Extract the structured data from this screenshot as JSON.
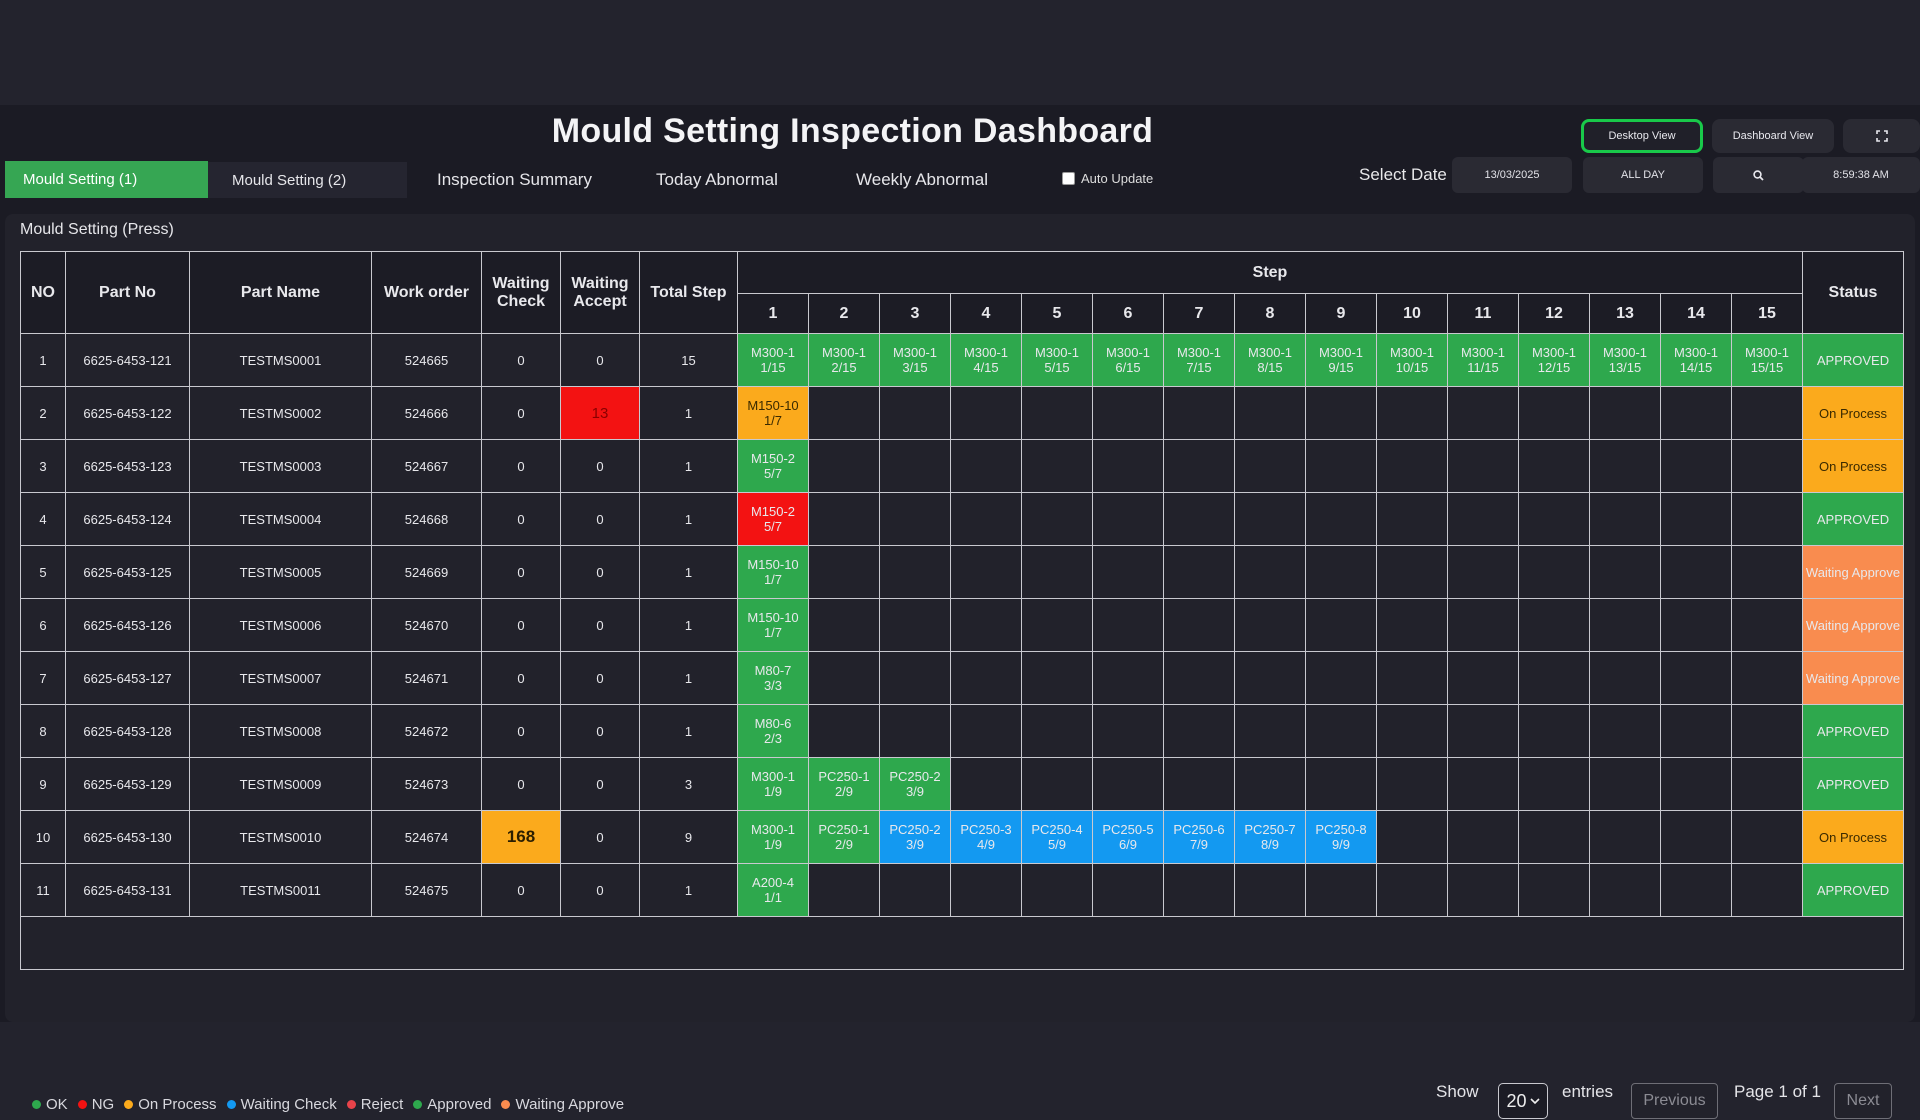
{
  "title": "Mould Setting Inspection Dashboard",
  "view_buttons": {
    "desktop": "Desktop View",
    "dashboard": "Dashboard View"
  },
  "tabs": [
    "Mould  Setting (1)",
    "Mould  Setting (2)",
    "Inspection Summary",
    "Today Abnormal",
    "Weekly Abnormal"
  ],
  "auto_update_label": "Auto Update",
  "select_date_label": "Select Date",
  "date_value": "13/03/2025",
  "range_value": "ALL DAY",
  "time_value": "8:59:38 AM",
  "panel_title": "Mould Setting (Press)",
  "table": {
    "headers": {
      "no": "NO",
      "part_no": "Part No",
      "part_name": "Part Name",
      "work_order": "Work order",
      "waiting_check": "Waiting Check",
      "waiting_accept": "Waiting Accept",
      "total_step": "Total Step",
      "step": "Step",
      "status": "Status"
    },
    "step_numbers": [
      "1",
      "2",
      "3",
      "4",
      "5",
      "6",
      "7",
      "8",
      "9",
      "10",
      "11",
      "12",
      "13",
      "14",
      "15"
    ],
    "rows": [
      {
        "no": "1",
        "part_no": "6625-6453-121",
        "part_name": "TESTMS0001",
        "work_order": "524665",
        "waiting_check": "0",
        "waiting_accept": "0",
        "total_step": "15",
        "status": "APPROVED",
        "status_class": "appr",
        "steps": [
          [
            "M300-1",
            "1/15",
            "ok"
          ],
          [
            "M300-1",
            "2/15",
            "ok"
          ],
          [
            "M300-1",
            "3/15",
            "ok"
          ],
          [
            "M300-1",
            "4/15",
            "ok"
          ],
          [
            "M300-1",
            "5/15",
            "ok"
          ],
          [
            "M300-1",
            "6/15",
            "ok"
          ],
          [
            "M300-1",
            "7/15",
            "ok"
          ],
          [
            "M300-1",
            "8/15",
            "ok"
          ],
          [
            "M300-1",
            "9/15",
            "ok"
          ],
          [
            "M300-1",
            "10/15",
            "ok"
          ],
          [
            "M300-1",
            "11/15",
            "ok"
          ],
          [
            "M300-1",
            "12/15",
            "ok"
          ],
          [
            "M300-1",
            "13/15",
            "ok"
          ],
          [
            "M300-1",
            "14/15",
            "ok"
          ],
          [
            "M300-1",
            "15/15",
            "ok"
          ]
        ]
      },
      {
        "no": "2",
        "part_no": "6625-6453-122",
        "part_name": "TESTMS0002",
        "work_order": "524666",
        "waiting_check": "0",
        "waiting_accept": "13",
        "accept_hl": "red",
        "total_step": "1",
        "status": "On Process",
        "status_class": "onp",
        "steps": [
          [
            "M150-10",
            "1/7",
            "onp"
          ]
        ]
      },
      {
        "no": "3",
        "part_no": "6625-6453-123",
        "part_name": "TESTMS0003",
        "work_order": "524667",
        "waiting_check": "0",
        "waiting_accept": "0",
        "total_step": "1",
        "status": "On Process",
        "status_class": "onp",
        "steps": [
          [
            "M150-2",
            "5/7",
            "ok"
          ]
        ]
      },
      {
        "no": "4",
        "part_no": "6625-6453-124",
        "part_name": "TESTMS0004",
        "work_order": "524668",
        "waiting_check": "0",
        "waiting_accept": "0",
        "total_step": "1",
        "status": "APPROVED",
        "status_class": "appr",
        "steps": [
          [
            "M150-2",
            "5/7",
            "ng"
          ]
        ]
      },
      {
        "no": "5",
        "part_no": "6625-6453-125",
        "part_name": "TESTMS0005",
        "work_order": "524669",
        "waiting_check": "0",
        "waiting_accept": "0",
        "total_step": "1",
        "status": "Waiting Approve",
        "status_class": "wa",
        "steps": [
          [
            "M150-10",
            "1/7",
            "ok"
          ]
        ]
      },
      {
        "no": "6",
        "part_no": "6625-6453-126",
        "part_name": "TESTMS0006",
        "work_order": "524670",
        "waiting_check": "0",
        "waiting_accept": "0",
        "total_step": "1",
        "status": "Waiting Approve",
        "status_class": "wa",
        "steps": [
          [
            "M150-10",
            "1/7",
            "ok"
          ]
        ]
      },
      {
        "no": "7",
        "part_no": "6625-6453-127",
        "part_name": "TESTMS0007",
        "work_order": "524671",
        "waiting_check": "0",
        "waiting_accept": "0",
        "total_step": "1",
        "status": "Waiting Approve",
        "status_class": "wa",
        "steps": [
          [
            "M80-7",
            "3/3",
            "ok"
          ]
        ]
      },
      {
        "no": "8",
        "part_no": "6625-6453-128",
        "part_name": "TESTMS0008",
        "work_order": "524672",
        "waiting_check": "0",
        "waiting_accept": "0",
        "total_step": "1",
        "status": "APPROVED",
        "status_class": "appr",
        "steps": [
          [
            "M80-6",
            "2/3",
            "ok"
          ]
        ]
      },
      {
        "no": "9",
        "part_no": "6625-6453-129",
        "part_name": "TESTMS0009",
        "work_order": "524673",
        "waiting_check": "0",
        "waiting_accept": "0",
        "total_step": "3",
        "status": "APPROVED",
        "status_class": "appr",
        "steps": [
          [
            "M300-1",
            "1/9",
            "ok"
          ],
          [
            "PC250-1",
            "2/9",
            "ok"
          ],
          [
            "PC250-2",
            "3/9",
            "ok"
          ]
        ]
      },
      {
        "no": "10",
        "part_no": "6625-6453-130",
        "part_name": "TESTMS0010",
        "work_order": "524674",
        "waiting_check": "168",
        "check_hl": "yellow",
        "waiting_accept": "0",
        "total_step": "9",
        "status": "On Process",
        "status_class": "onp",
        "steps": [
          [
            "M300-1",
            "1/9",
            "ok"
          ],
          [
            "PC250-1",
            "2/9",
            "ok"
          ],
          [
            "PC250-2",
            "3/9",
            "wc"
          ],
          [
            "PC250-3",
            "4/9",
            "wc"
          ],
          [
            "PC250-4",
            "5/9",
            "wc"
          ],
          [
            "PC250-5",
            "6/9",
            "wc"
          ],
          [
            "PC250-6",
            "7/9",
            "wc"
          ],
          [
            "PC250-7",
            "8/9",
            "wc"
          ],
          [
            "PC250-8",
            "9/9",
            "wc"
          ]
        ]
      },
      {
        "no": "11",
        "part_no": "6625-6453-131",
        "part_name": "TESTMS0011",
        "work_order": "524675",
        "waiting_check": "0",
        "waiting_accept": "0",
        "total_step": "1",
        "status": "APPROVED",
        "status_class": "appr",
        "steps": [
          [
            "A200-4",
            "1/1",
            "ok"
          ]
        ]
      }
    ]
  },
  "legend": [
    {
      "label": "OK",
      "color": "#2ea84d"
    },
    {
      "label": "NG",
      "color": "#f31212"
    },
    {
      "label": "On Process",
      "color": "#fbaa1c"
    },
    {
      "label": "Waiting Check",
      "color": "#1399f1"
    },
    {
      "label": "Reject",
      "color": "#e8434a"
    },
    {
      "label": "Approved",
      "color": "#2ea84d"
    },
    {
      "label": "Waiting Approve",
      "color": "#f98c4f"
    }
  ],
  "pager": {
    "show": "Show",
    "entries_value": "20",
    "entries": "entries",
    "previous": "Previous",
    "page_info": "Page 1 of 1",
    "next": "Next"
  }
}
